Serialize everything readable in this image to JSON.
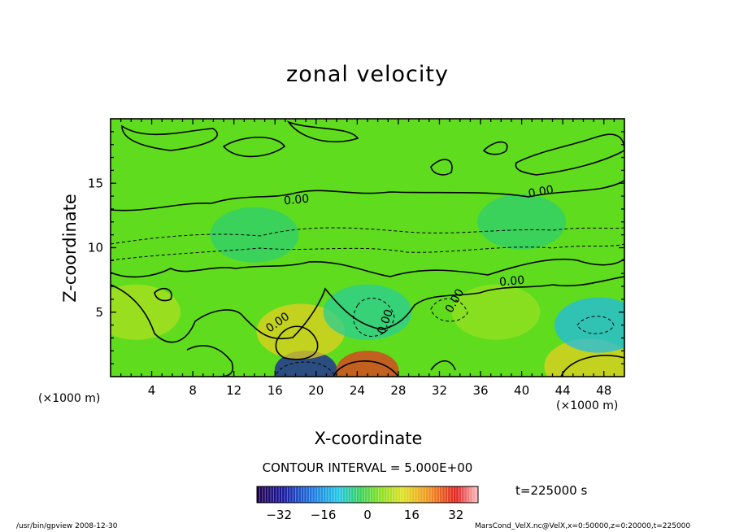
{
  "chart_data": {
    "type": "heatmap",
    "title": "zonal velocity",
    "xlabel": "X-coordinate",
    "ylabel": "Z-coordinate",
    "x_scale_label": "(×1000 m)",
    "xlim": [
      0,
      50
    ],
    "ylim": [
      0,
      20
    ],
    "x_ticks": [
      4,
      8,
      12,
      16,
      20,
      24,
      28,
      32,
      36,
      40,
      44,
      48
    ],
    "y_ticks": [
      5,
      10,
      15
    ],
    "contour_interval_label": "CONTOUR INTERVAL = 5.000E+00",
    "contour_labels": [
      "0.00",
      "0.00",
      "0.00",
      "0.00",
      "0.00",
      "0.00",
      "0.00"
    ],
    "colorbar": {
      "range": [
        -40,
        40
      ],
      "ticks": [
        "−32",
        "−16",
        "0",
        "16",
        "32"
      ]
    },
    "time_label": "t=225000 s",
    "features": [
      {
        "x": 19.0,
        "z": 0.5,
        "value": -30
      },
      {
        "x": 25.0,
        "z": 0.5,
        "value": 30
      },
      {
        "x": 46.5,
        "z": 0.8,
        "value": 15
      },
      {
        "x": 18.5,
        "z": 3.5,
        "value": 15
      },
      {
        "x": 2.5,
        "z": 5.0,
        "value": 8
      },
      {
        "x": 47.5,
        "z": 4.0,
        "value": -12
      },
      {
        "x": 25.0,
        "z": 5.0,
        "value": -6
      },
      {
        "x": 37.5,
        "z": 5.0,
        "value": 6
      },
      {
        "x": 14.0,
        "z": 11.0,
        "value": -4
      },
      {
        "x": 40.0,
        "z": 12.0,
        "value": -4
      }
    ]
  },
  "footer": {
    "left": "/usr/bin/gpview   2008-12-30",
    "right": "MarsCond_VelX.nc@VelX,x=0:50000,z=0:20000,t=225000"
  }
}
